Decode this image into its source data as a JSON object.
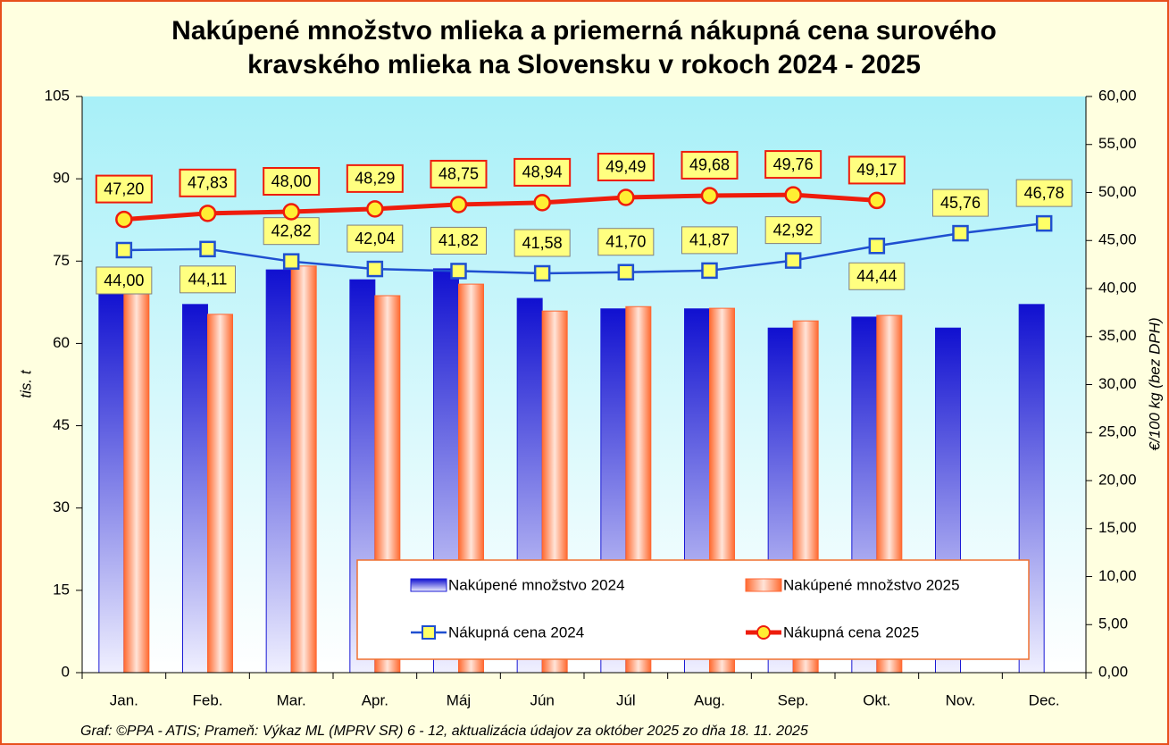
{
  "chart_data": {
    "type": "bar",
    "title": [
      "Nakúpené množstvo mlieka a priemerná nákupná cena surového",
      "kravského mlieka na Slovensku v rokoch 2024 - 2025"
    ],
    "ylabel": "tis. t",
    "y2label": "€/100 kg (bez DPH)",
    "source": "Graf: ©PPA - ATIS; Prameň: Výkaz ML (MPRV SR) 6 - 12, aktualizácia údajov za október 2025 zo dňa 18. 11. 2025",
    "categories": [
      "Jan.",
      "Feb.",
      "Mar.",
      "Apr.",
      "Máj",
      "Jún",
      "Júl",
      "Aug.",
      "Sep.",
      "Okt.",
      "Nov.",
      "Dec."
    ],
    "ylim": [
      0,
      105
    ],
    "yticks": [
      0,
      15,
      30,
      45,
      60,
      75,
      90,
      105
    ],
    "y2lim": [
      0,
      60
    ],
    "y2ticks": [
      {
        "value": 0,
        "label": "0,00"
      },
      {
        "value": 5,
        "label": "5,00"
      },
      {
        "value": 10,
        "label": "10,00"
      },
      {
        "value": 15,
        "label": "15,00"
      },
      {
        "value": 20,
        "label": "20,00"
      },
      {
        "value": 25,
        "label": "25,00"
      },
      {
        "value": 30,
        "label": "30,00"
      },
      {
        "value": 35,
        "label": "35,00"
      },
      {
        "value": 40,
        "label": "40,00"
      },
      {
        "value": 45,
        "label": "45,00"
      },
      {
        "value": 50,
        "label": "50,00"
      },
      {
        "value": 55,
        "label": "55,00"
      },
      {
        "value": 60,
        "label": "60,00"
      }
    ],
    "series": [
      {
        "name": "Nakúpené množstvo 2024",
        "type": "bar",
        "color": "#1a1ad6",
        "values": [
          69.7,
          67.1,
          73.4,
          71.6,
          73.6,
          68.2,
          66.3,
          66.3,
          62.8,
          64.8,
          62.8,
          67.1
        ]
      },
      {
        "name": "Nakúpené množstvo 2025",
        "type": "bar",
        "color": "#ff6633",
        "values": [
          70.0,
          65.3,
          74.1,
          68.7,
          70.8,
          65.9,
          66.7,
          66.4,
          64.1,
          65.1,
          null,
          null
        ]
      },
      {
        "name": "Nákupná cena 2024",
        "type": "line",
        "axis": "y2",
        "color": "#1f4fd0",
        "marker": "square",
        "values": [
          44.0,
          44.11,
          42.82,
          42.04,
          41.82,
          41.58,
          41.7,
          41.87,
          42.92,
          44.44,
          45.76,
          46.78
        ],
        "value_labels": [
          "44,00",
          "44,11",
          "42,82",
          "42,04",
          "41,82",
          "41,58",
          "41,70",
          "41,87",
          "42,92",
          "44,44",
          "45,76",
          "46,78"
        ]
      },
      {
        "name": "Nákupná cena 2025",
        "type": "line",
        "axis": "y2",
        "color": "#ee1c0c",
        "marker": "circle",
        "values": [
          47.2,
          47.83,
          48.0,
          48.29,
          48.75,
          48.94,
          49.49,
          49.68,
          49.76,
          49.17,
          null,
          null
        ],
        "value_labels": [
          "47,20",
          "47,83",
          "48,00",
          "48,29",
          "48,75",
          "48,94",
          "49,49",
          "49,68",
          "49,76",
          "49,17",
          null,
          null
        ]
      }
    ]
  }
}
